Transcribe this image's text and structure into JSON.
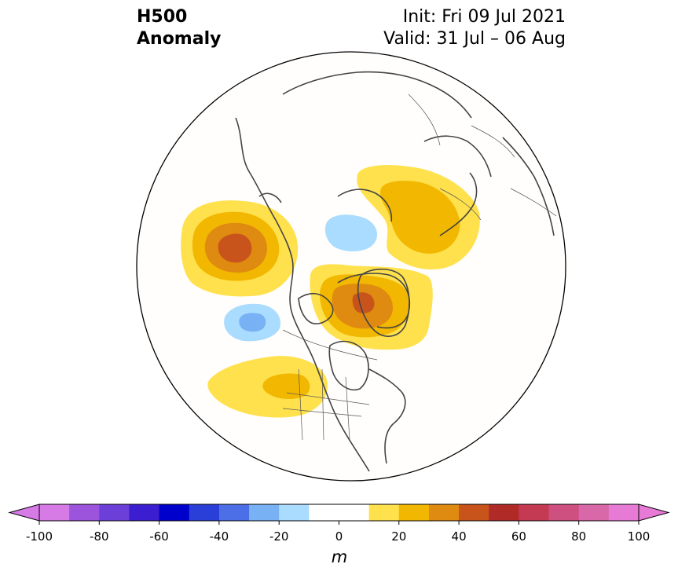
{
  "title": {
    "left_line1": "H500",
    "left_line2": "Anomaly",
    "right_line1": "Init: Fri 09 Jul 2021",
    "right_line2": "Valid: 31 Jul – 06 Aug"
  },
  "map": {
    "projection": "north-polar-stereographic",
    "region": "Northern Hemisphere (North America / Arctic)",
    "anomalies": [
      {
        "name": "NE Pacific / Gulf of Alaska ridge",
        "sign": "positive",
        "peak_m": 50
      },
      {
        "name": "Greenland / Canadian Arctic ridge",
        "sign": "positive",
        "peak_m": 40
      },
      {
        "name": "Scandinavia / NW Russia ridge",
        "sign": "positive",
        "peak_m": 30
      },
      {
        "name": "Western US / NE Pacific coast ridge",
        "sign": "positive",
        "peak_m": 20
      },
      {
        "name": "NE Siberia / Chukchi trough",
        "sign": "negative",
        "peak_m": -20
      },
      {
        "name": "Central N Pacific trough",
        "sign": "negative",
        "peak_m": -30
      }
    ]
  },
  "colorbar": {
    "ticks": [
      "-100",
      "-80",
      "-60",
      "-40",
      "-20",
      "0",
      "20",
      "40",
      "60",
      "80",
      "100"
    ],
    "unit": "m",
    "levels": [
      -100,
      -90,
      -80,
      -70,
      -60,
      -50,
      -40,
      -30,
      -20,
      -10,
      0,
      10,
      20,
      30,
      40,
      50,
      60,
      70,
      80,
      90,
      100
    ],
    "colors": [
      "#d67ae6",
      "#9c54dc",
      "#6b3fd8",
      "#3b1ed0",
      "#0000cd",
      "#2a3ed8",
      "#4c6fe8",
      "#78b2f5",
      "#aadcff",
      "#ffffff",
      "#ffffff",
      "#ffe14d",
      "#f2b700",
      "#df8a10",
      "#c8541c",
      "#b02a27",
      "#c43a52",
      "#ce5080",
      "#d868a8",
      "#e67ad4"
    ],
    "extend_low_color": "#d67ae6",
    "extend_high_color": "#e67ad4"
  }
}
